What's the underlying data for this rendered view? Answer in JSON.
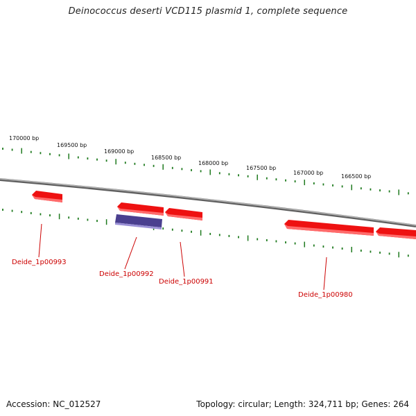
{
  "title": "Deinococcus deserti VCD115 plasmid 1, complete sequence",
  "footer": {
    "accession": "Accession: NC_012527",
    "summary": "Topology: circular; Length: 324,711 bp; Genes: 264"
  },
  "scale": {
    "tick_labels": [
      "170000 bp",
      "169500 bp",
      "169000 bp",
      "168500 bp",
      "168000 bp",
      "167500 bp",
      "167000 bp",
      "166500 bp"
    ],
    "tick_color": "#1e7a1e"
  },
  "backbone_color": "#8c8c8c",
  "genes": [
    {
      "label": "Deide_1p00993",
      "color": "#ee1111"
    },
    {
      "label": "Deide_1p00992",
      "color": "#ee1111"
    },
    {
      "label": "Deide_1p00991",
      "color": "#ee1111"
    },
    {
      "label": "Deide_1p00980",
      "color": "#ee1111"
    }
  ],
  "other_features": [
    {
      "name": "blue-feature",
      "color": "#4a3f8f"
    },
    {
      "name": "right-edge-gene",
      "color": "#ee1111"
    }
  ]
}
